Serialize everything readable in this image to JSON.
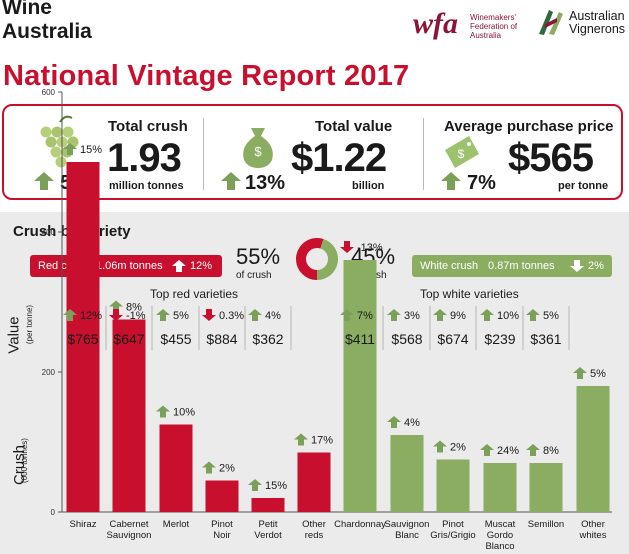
{
  "header": {
    "brand_line1": "Wine",
    "brand_line2": "Australia",
    "title": "National Vintage Report 2017",
    "wfa_mark": "wfa",
    "wfa_text_1": "Winemakers'",
    "wfa_text_2": "Federation of",
    "wfa_text_3": "Australia",
    "av_text_1": "Australian",
    "av_text_2": "Vignerons"
  },
  "kpis": [
    {
      "label": "Total crush",
      "value": "1.93",
      "unit": "million tonnes",
      "change": "5%",
      "direction": "up",
      "icon": "grapes-icon"
    },
    {
      "label": "Total value",
      "value": "$1.22",
      "unit": "billion",
      "change": "13%",
      "direction": "up",
      "icon": "money-bag-icon"
    },
    {
      "label": "Average purchase price",
      "value": "$565",
      "unit": "per tonne",
      "change": "7%",
      "direction": "up",
      "icon": "price-tag-icon"
    }
  ],
  "crush_section": {
    "title": "Crush by variety",
    "red_label": "Red crush",
    "red_tonnes": "1.06m tonnes",
    "red_change": "12%",
    "white_label": "White crush",
    "white_tonnes": "0.87m tonnes",
    "white_change": "2%",
    "red_share": "55%",
    "white_share": "45%",
    "share_sub": "of crush",
    "red_group": "Top red varieties",
    "white_group": "Top white varieties",
    "value_axis": "Value",
    "value_axis_sub": "(per tonne)",
    "crush_axis": "Crush",
    "crush_axis_sub": "(000 tonnes)"
  },
  "colors": {
    "red": "#c8102e",
    "green": "#8aad62",
    "up": "#7aa05a",
    "down": "#c8102e"
  },
  "chart_data": {
    "type": "bar",
    "ylim": [
      0,
      600
    ],
    "yticks": [
      0,
      200,
      400,
      600
    ],
    "ylabel": "Crush (000 tonnes)",
    "categories": [
      "Shiraz",
      "Cabernet Sauvignon",
      "Merlot",
      "Pinot Noir",
      "Petit Verdot",
      "Other reds",
      "Chardonnay",
      "Sauvignon Blanc",
      "Pinot Gris/Grigio",
      "Muscat Gordo Blanco",
      "Semillon",
      "Other whites"
    ],
    "category_lines": [
      [
        "Shiraz"
      ],
      [
        "Cabernet",
        "Sauvignon"
      ],
      [
        "Merlot"
      ],
      [
        "Pinot",
        "Noir"
      ],
      [
        "Petit",
        "Verdot"
      ],
      [
        "Other",
        "reds"
      ],
      [
        "Chardonnay"
      ],
      [
        "Sauvignon",
        "Blanc"
      ],
      [
        "Pinot",
        "Gris/Grigio"
      ],
      [
        "Muscat",
        "Gordo",
        "Blanco"
      ],
      [
        "Semillon"
      ],
      [
        "Other",
        "whites"
      ]
    ],
    "crush": [
      500,
      275,
      125,
      45,
      20,
      85,
      360,
      110,
      75,
      70,
      70,
      180
    ],
    "crush_change": [
      "15%",
      "8%",
      "10%",
      "2%",
      "15%",
      "17%",
      "-13%",
      "4%",
      "2%",
      "24%",
      "8%",
      "5%"
    ],
    "crush_dir": [
      "up",
      "up",
      "up",
      "up",
      "up",
      "up",
      "down",
      "up",
      "up",
      "up",
      "up",
      "up"
    ],
    "color": [
      "red",
      "red",
      "red",
      "red",
      "red",
      "red",
      "green",
      "green",
      "green",
      "green",
      "green",
      "green"
    ],
    "value_per_tonne": [
      "$765",
      "$647",
      "$455",
      "$884",
      "$362",
      "",
      "$411",
      "$568",
      "$674",
      "$239",
      "$361",
      ""
    ],
    "value_change": [
      "12%",
      "-1%",
      "5%",
      "0.3%",
      "4%",
      "",
      "7%",
      "3%",
      "9%",
      "10%",
      "5%",
      ""
    ],
    "value_dir": [
      "up",
      "down",
      "up",
      "down",
      "up",
      "",
      "up",
      "up",
      "up",
      "up",
      "up",
      ""
    ]
  }
}
